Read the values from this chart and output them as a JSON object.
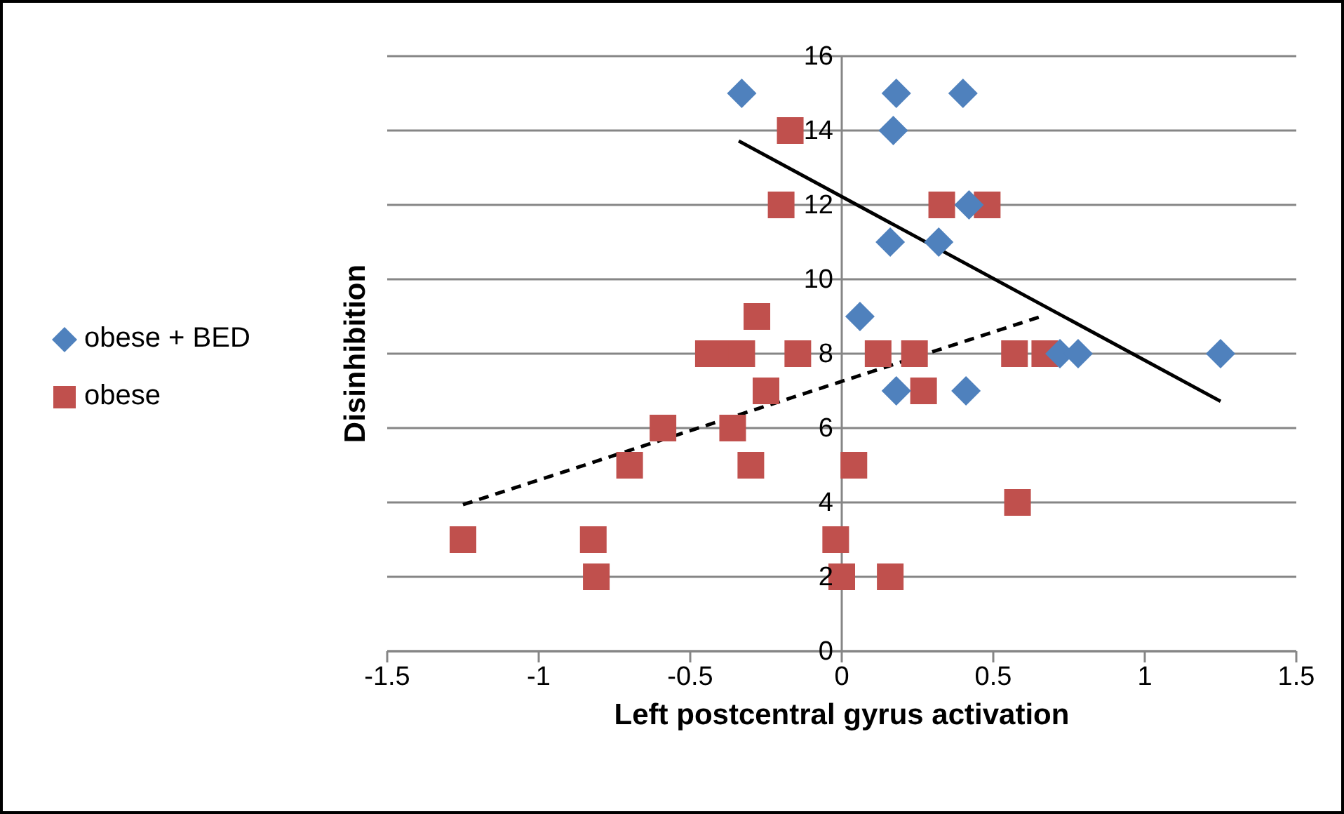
{
  "chart_data": {
    "type": "scatter",
    "xlabel": "Left postcentral gyrus activation",
    "ylabel": "Disinhibition",
    "xlim": [
      -1.5,
      1.5
    ],
    "xticks": [
      -1.5,
      -1,
      -0.5,
      0,
      0.5,
      1,
      1.5
    ],
    "ylim": [
      0,
      16
    ],
    "yticks": [
      0,
      2,
      4,
      6,
      8,
      10,
      12,
      14,
      16
    ],
    "grid": "y",
    "legend": "left",
    "series": [
      {
        "name": "obese + BED",
        "color": "#4f81bd",
        "marker": "diamond",
        "x": [
          -0.33,
          0.18,
          0.4,
          0.17,
          0.42,
          0.16,
          0.32,
          0.06,
          0.18,
          0.41,
          0.72,
          0.78,
          1.25
        ],
        "values": [
          15,
          15,
          15,
          14,
          12,
          11,
          11,
          9,
          7,
          7,
          8,
          8,
          8
        ]
      },
      {
        "name": "obese",
        "color": "#c0504d",
        "marker": "square",
        "x": [
          -0.17,
          -0.2,
          -0.28,
          -0.44,
          -0.38,
          -0.33,
          -0.145,
          -0.25,
          -0.59,
          -0.36,
          -0.7,
          -0.3,
          -1.25,
          -0.82,
          -0.81,
          0.33,
          0.48,
          0.12,
          0.24,
          0.57,
          0.67,
          0.27,
          0.04,
          0.58,
          -0.02,
          0.0,
          0.16
        ],
        "values": [
          14,
          12,
          9,
          8,
          8,
          8,
          8,
          7,
          6,
          6,
          5,
          5,
          3,
          3,
          2,
          12,
          12,
          8,
          8,
          8,
          8,
          7,
          5,
          4,
          3,
          2,
          2
        ]
      },
      {
        "type": "line",
        "color": "#000000",
        "line_style": "solid",
        "marker": "none",
        "x": [
          -0.34,
          1.25
        ],
        "values": [
          13.72,
          6.72
        ]
      },
      {
        "type": "line",
        "color": "#000000",
        "line_style": "dashed",
        "marker": "none",
        "x": [
          -1.25,
          0.65
        ],
        "values": [
          3.94,
          8.98
        ]
      }
    ]
  }
}
